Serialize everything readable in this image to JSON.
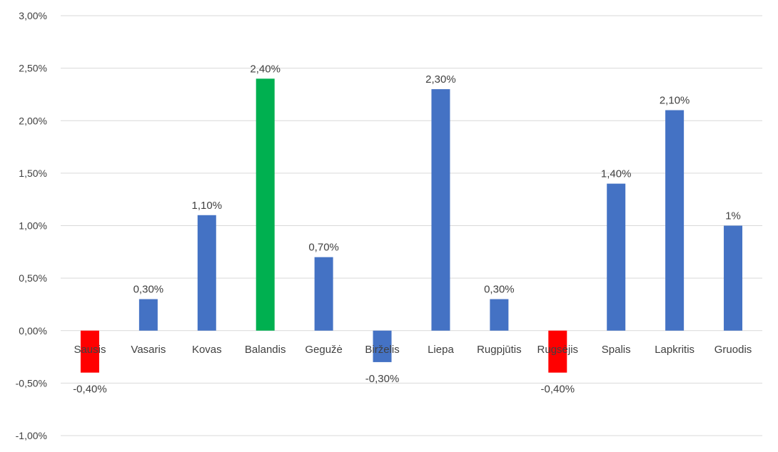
{
  "chart_data": {
    "type": "bar",
    "categories": [
      "Sausis",
      "Vasaris",
      "Kovas",
      "Balandis",
      "Gegužė",
      "Birželis",
      "Liepa",
      "Rugpjūtis",
      "Rugsėjis",
      "Spalis",
      "Lapkritis",
      "Gruodis"
    ],
    "values": [
      -0.4,
      0.3,
      1.1,
      2.4,
      0.7,
      -0.3,
      2.3,
      0.3,
      -0.4,
      1.4,
      2.1,
      1.0
    ],
    "data_labels": [
      "-0,40%",
      "0,30%",
      "1,10%",
      "2,40%",
      "0,70%",
      "-0,30%",
      "2,30%",
      "0,30%",
      "-0,40%",
      "1,40%",
      "2,10%",
      "1%"
    ],
    "bar_colors": [
      "#ff0000",
      "#4472c4",
      "#4472c4",
      "#00b050",
      "#4472c4",
      "#4472c4",
      "#4472c4",
      "#4472c4",
      "#ff0000",
      "#4472c4",
      "#4472c4",
      "#4472c4"
    ],
    "ylim": [
      -1.0,
      3.0
    ],
    "ytick_values": [
      3.0,
      2.5,
      2.0,
      1.5,
      1.0,
      0.5,
      0.0,
      -0.5,
      -1.0
    ],
    "ytick_labels": [
      "3,00%",
      "2,50%",
      "2,00%",
      "1,50%",
      "1,00%",
      "0,50%",
      "0,00%",
      "-0,50%",
      "-1,00%"
    ],
    "grid": true,
    "legend": "none",
    "title": "",
    "xlabel": "",
    "ylabel": ""
  }
}
